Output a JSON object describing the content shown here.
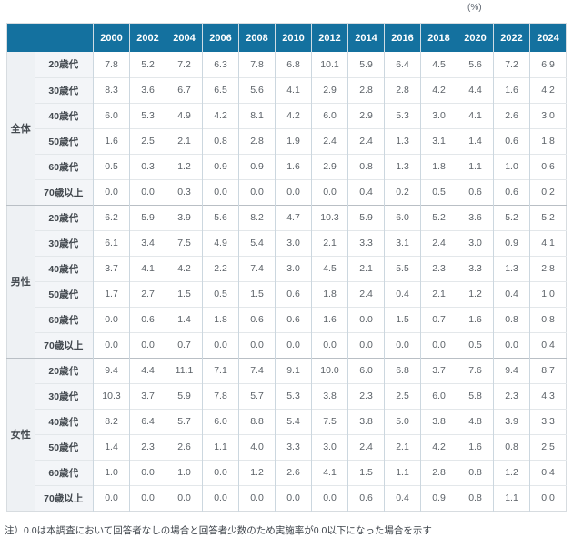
{
  "unit_label": "(%)",
  "footnote": "注）0.0は本調査において回答者なしの場合と回答者少数のため実施率が0.0以下になった場合を示す",
  "colors": {
    "header_bg": "#14719f",
    "header_text": "#ffffff",
    "group_col_bg": "#eef1f4",
    "age_col_bg": "#f3f5f8",
    "data_bg": "#ffffff",
    "data_text": "#5b6167",
    "label_text": "#42484e",
    "grid_vertical": "#ccd7df",
    "grid_horizontal": "#e3e7ea",
    "section_divider": "#b9bfc5"
  },
  "chart_data": {
    "type": "table",
    "unit": "%",
    "corner_label": "",
    "columns": [
      "2000",
      "2002",
      "2004",
      "2006",
      "2008",
      "2010",
      "2012",
      "2014",
      "2016",
      "2018",
      "2020",
      "2022",
      "2024"
    ],
    "groups": [
      {
        "name": "全体",
        "rows": [
          {
            "label": "20歳代",
            "values": [
              7.8,
              5.2,
              7.2,
              6.3,
              7.8,
              6.8,
              10.1,
              5.9,
              6.4,
              4.5,
              5.6,
              7.2,
              6.9
            ]
          },
          {
            "label": "30歳代",
            "values": [
              8.3,
              3.6,
              6.7,
              6.5,
              5.6,
              4.1,
              2.9,
              2.8,
              2.8,
              4.2,
              4.4,
              1.6,
              4.2
            ]
          },
          {
            "label": "40歳代",
            "values": [
              6.0,
              5.3,
              4.9,
              4.2,
              8.1,
              4.2,
              6.0,
              2.9,
              5.3,
              3.0,
              4.1,
              2.6,
              3.0
            ]
          },
          {
            "label": "50歳代",
            "values": [
              1.6,
              2.5,
              2.1,
              0.8,
              2.8,
              1.9,
              2.4,
              2.4,
              1.3,
              3.1,
              1.4,
              0.6,
              1.8
            ]
          },
          {
            "label": "60歳代",
            "values": [
              0.5,
              0.3,
              1.2,
              0.9,
              0.9,
              1.6,
              2.9,
              0.8,
              1.3,
              1.8,
              1.1,
              1.0,
              0.6
            ]
          },
          {
            "label": "70歳以上",
            "values": [
              0.0,
              0.0,
              0.3,
              0.0,
              0.0,
              0.0,
              0.0,
              0.4,
              0.2,
              0.5,
              0.6,
              0.6,
              0.2
            ]
          }
        ]
      },
      {
        "name": "男性",
        "rows": [
          {
            "label": "20歳代",
            "values": [
              6.2,
              5.9,
              3.9,
              5.6,
              8.2,
              4.7,
              10.3,
              5.9,
              6.0,
              5.2,
              3.6,
              5.2,
              5.2
            ]
          },
          {
            "label": "30歳代",
            "values": [
              6.1,
              3.4,
              7.5,
              4.9,
              5.4,
              3.0,
              2.1,
              3.3,
              3.1,
              2.4,
              3.0,
              0.9,
              4.1
            ]
          },
          {
            "label": "40歳代",
            "values": [
              3.7,
              4.1,
              4.2,
              2.2,
              7.4,
              3.0,
              4.5,
              2.1,
              5.5,
              2.3,
              3.3,
              1.3,
              2.8
            ]
          },
          {
            "label": "50歳代",
            "values": [
              1.7,
              2.7,
              1.5,
              0.5,
              1.5,
              0.6,
              1.8,
              2.4,
              0.4,
              2.1,
              1.2,
              0.4,
              1.0
            ]
          },
          {
            "label": "60歳代",
            "values": [
              0.0,
              0.6,
              1.4,
              1.8,
              0.6,
              0.6,
              1.6,
              0.0,
              1.5,
              0.7,
              1.6,
              0.8,
              0.8
            ]
          },
          {
            "label": "70歳以上",
            "values": [
              0.0,
              0.0,
              0.7,
              0.0,
              0.0,
              0.0,
              0.0,
              0.0,
              0.0,
              0.0,
              0.5,
              0.0,
              0.4
            ]
          }
        ]
      },
      {
        "name": "女性",
        "rows": [
          {
            "label": "20歳代",
            "values": [
              9.4,
              4.4,
              11.1,
              7.1,
              7.4,
              9.1,
              10.0,
              6.0,
              6.8,
              3.7,
              7.6,
              9.4,
              8.7
            ]
          },
          {
            "label": "30歳代",
            "values": [
              10.3,
              3.7,
              5.9,
              7.8,
              5.7,
              5.3,
              3.8,
              2.3,
              2.5,
              6.0,
              5.8,
              2.3,
              4.3
            ]
          },
          {
            "label": "40歳代",
            "values": [
              8.2,
              6.4,
              5.7,
              6.0,
              8.8,
              5.4,
              7.5,
              3.8,
              5.0,
              3.8,
              4.8,
              3.9,
              3.3
            ]
          },
          {
            "label": "50歳代",
            "values": [
              1.4,
              2.3,
              2.6,
              1.1,
              4.0,
              3.3,
              3.0,
              2.4,
              2.1,
              4.2,
              1.6,
              0.8,
              2.5
            ]
          },
          {
            "label": "60歳代",
            "values": [
              1.0,
              0.0,
              1.0,
              0.0,
              1.2,
              2.6,
              4.1,
              1.5,
              1.1,
              2.8,
              0.8,
              1.2,
              0.4
            ]
          },
          {
            "label": "70歳以上",
            "values": [
              0.0,
              0.0,
              0.0,
              0.0,
              0.0,
              0.0,
              0.0,
              0.6,
              0.4,
              0.9,
              0.8,
              1.1,
              0.0
            ]
          }
        ]
      }
    ]
  }
}
